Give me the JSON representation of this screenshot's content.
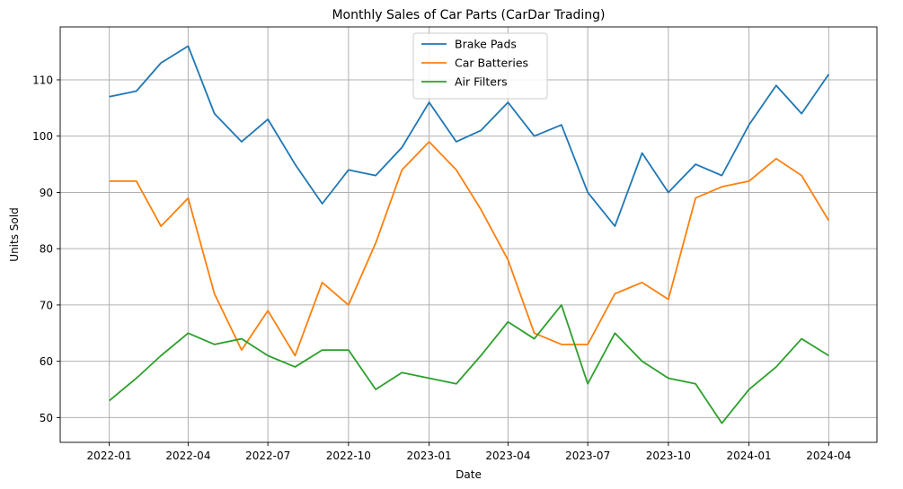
{
  "chart_data": {
    "type": "line",
    "title": "Monthly Sales of Car Parts (CarDar Trading)",
    "xlabel": "Date",
    "ylabel": "Units Sold",
    "x": [
      "2022-01",
      "2022-02",
      "2022-03",
      "2022-04",
      "2022-05",
      "2022-06",
      "2022-07",
      "2022-08",
      "2022-09",
      "2022-10",
      "2022-11",
      "2022-12",
      "2023-01",
      "2023-02",
      "2023-03",
      "2023-04",
      "2023-05",
      "2023-06",
      "2023-07",
      "2023-08",
      "2023-09",
      "2023-10",
      "2023-11",
      "2023-12",
      "2024-01",
      "2024-02",
      "2024-03",
      "2024-04"
    ],
    "x_ticks": [
      "2022-01",
      "2022-04",
      "2022-07",
      "2022-10",
      "2023-01",
      "2023-04",
      "2023-07",
      "2023-10",
      "2024-01",
      "2024-04"
    ],
    "y_ticks": [
      50,
      60,
      70,
      80,
      90,
      100,
      110
    ],
    "ylim": [
      45.6,
      119.4
    ],
    "xlim": [
      "2021-11-06",
      "2024-05-26"
    ],
    "grid": true,
    "legend_position": "top-center",
    "series": [
      {
        "name": "Brake Pads",
        "color": "#1f77b4",
        "values": [
          107,
          108,
          113,
          116,
          104,
          99,
          103,
          95,
          88,
          94,
          93,
          98,
          106,
          99,
          101,
          106,
          100,
          102,
          90,
          84,
          97,
          90,
          95,
          93,
          102,
          109,
          104,
          111
        ]
      },
      {
        "name": "Car Batteries",
        "color": "#ff7f0e",
        "values": [
          92,
          92,
          84,
          89,
          72,
          62,
          69,
          61,
          74,
          70,
          81,
          94,
          99,
          94,
          87,
          78,
          65,
          63,
          63,
          72,
          74,
          71,
          89,
          91,
          92,
          96,
          93,
          85
        ]
      },
      {
        "name": "Air Filters",
        "color": "#2ca02c",
        "values": [
          53,
          57,
          61,
          65,
          63,
          64,
          61,
          59,
          62,
          62,
          55,
          58,
          57,
          56,
          61,
          67,
          64,
          70,
          56,
          65,
          60,
          57,
          56,
          49,
          55,
          59,
          64,
          61
        ]
      }
    ]
  }
}
